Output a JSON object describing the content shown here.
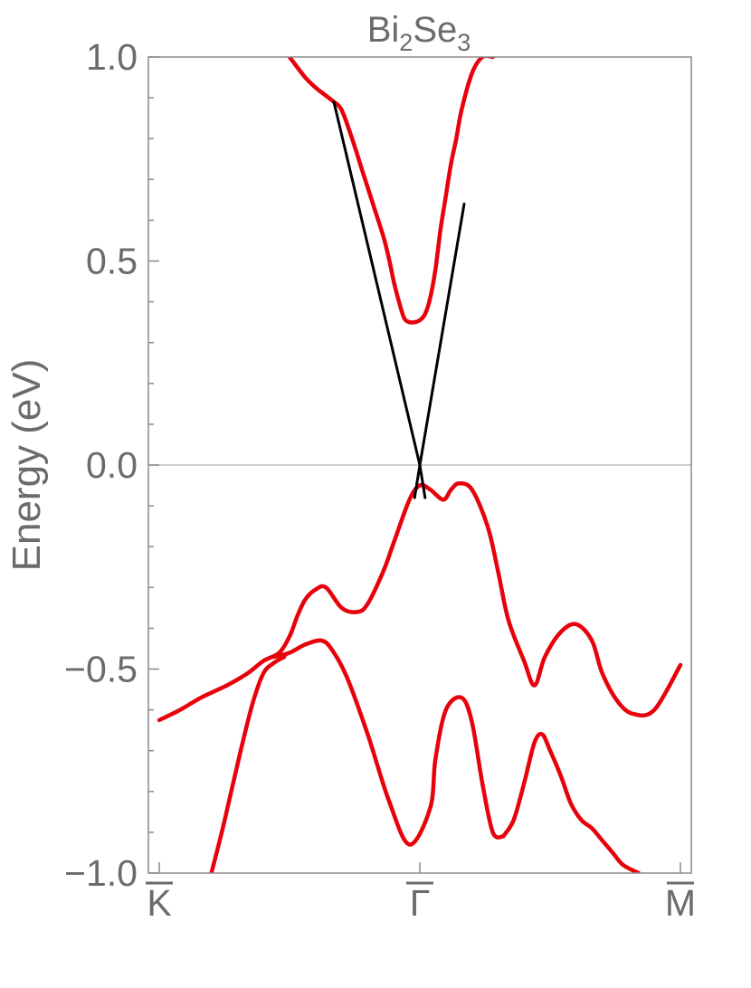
{
  "chart_data": {
    "type": "line",
    "title": "Bi",
    "title_sub_a": "2",
    "title_mid": "Se",
    "title_sub_b": "3",
    "ylabel": "Energy (eV)",
    "xlabel": "",
    "ylim": [
      -1.0,
      1.0
    ],
    "xlim": [
      0,
      1
    ],
    "grid": false,
    "yticks": [
      -1.0,
      -0.5,
      0.0,
      0.5,
      1.0
    ],
    "ytick_labels": [
      "−1.0",
      "−0.5",
      "0.0",
      "0.5",
      "1.0"
    ],
    "xticks": [
      0,
      0.5,
      1
    ],
    "xtick_labels": [
      "K",
      "Γ",
      "M"
    ],
    "colors": {
      "bulk": "#e8000b",
      "surface": "#000000",
      "axis": "#8a8a8a",
      "zero_line": "#bdbdbd"
    },
    "series": [
      {
        "style": "bulk",
        "x": [
          0.25,
          0.28,
          0.3,
          0.32,
          0.335,
          0.35,
          0.37,
          0.39,
          0.41,
          0.43,
          0.44,
          0.45,
          0.46,
          0.47,
          0.48,
          0.49,
          0.5,
          0.51,
          0.52,
          0.53,
          0.54,
          0.55,
          0.56,
          0.57,
          0.58,
          0.6,
          0.62,
          0.64
        ],
        "y": [
          1.0,
          0.95,
          0.925,
          0.905,
          0.89,
          0.87,
          0.8,
          0.72,
          0.64,
          0.56,
          0.51,
          0.45,
          0.4,
          0.36,
          0.35,
          0.35,
          0.355,
          0.37,
          0.41,
          0.48,
          0.58,
          0.66,
          0.74,
          0.8,
          0.87,
          0.96,
          1.0,
          1.0
        ]
      },
      {
        "style": "bulk",
        "x": [
          0.0,
          0.04,
          0.08,
          0.13,
          0.17,
          0.2,
          0.23,
          0.25,
          0.265,
          0.28,
          0.3,
          0.32,
          0.35,
          0.38,
          0.4,
          0.43,
          0.45,
          0.48,
          0.5,
          0.52,
          0.545,
          0.56,
          0.575,
          0.6,
          0.63,
          0.65,
          0.67,
          0.7,
          0.72,
          0.74,
          0.77,
          0.8,
          0.83,
          0.85,
          0.88,
          0.91,
          0.95,
          1.0
        ],
        "y": [
          -0.625,
          -0.6,
          -0.57,
          -0.54,
          -0.51,
          -0.48,
          -0.46,
          -0.42,
          -0.37,
          -0.33,
          -0.305,
          -0.3,
          -0.35,
          -0.36,
          -0.34,
          -0.26,
          -0.19,
          -0.085,
          -0.05,
          -0.06,
          -0.085,
          -0.06,
          -0.045,
          -0.06,
          -0.15,
          -0.26,
          -0.38,
          -0.48,
          -0.54,
          -0.47,
          -0.41,
          -0.39,
          -0.43,
          -0.51,
          -0.58,
          -0.61,
          -0.6,
          -0.49
        ]
      },
      {
        "style": "bulk",
        "x": [
          0.22,
          0.25,
          0.28,
          0.31,
          0.33,
          0.36,
          0.4,
          0.44,
          0.48,
          0.52,
          0.53,
          0.55,
          0.58,
          0.6,
          0.62,
          0.64,
          0.66
        ],
        "y": [
          -0.47,
          -0.46,
          -0.44,
          -0.43,
          -0.45,
          -0.52,
          -0.66,
          -0.82,
          -0.93,
          -0.84,
          -0.72,
          -0.6,
          -0.57,
          -0.63,
          -0.78,
          -0.9,
          -0.91
        ]
      },
      {
        "style": "bulk",
        "x": [
          0.1,
          0.12,
          0.14,
          0.16,
          0.18,
          0.2,
          0.22,
          0.24
        ],
        "y": [
          -1.0,
          -0.9,
          -0.79,
          -0.68,
          -0.58,
          -0.51,
          -0.485,
          -0.47
        ]
      },
      {
        "style": "bulk",
        "x": [
          0.66,
          0.68,
          0.7,
          0.72,
          0.735,
          0.75,
          0.77,
          0.79,
          0.81,
          0.83,
          0.85,
          0.87,
          0.89,
          0.92
        ],
        "y": [
          -0.91,
          -0.87,
          -0.78,
          -0.68,
          -0.66,
          -0.7,
          -0.76,
          -0.83,
          -0.87,
          -0.89,
          -0.92,
          -0.95,
          -0.98,
          -1.0
        ]
      },
      {
        "style": "surface",
        "x": [
          0.335,
          0.5,
          0.51
        ],
        "y": [
          0.89,
          0.0,
          -0.08
        ]
      },
      {
        "style": "surface",
        "x": [
          0.585,
          0.5,
          0.49
        ],
        "y": [
          0.64,
          0.0,
          -0.08
        ]
      }
    ]
  }
}
